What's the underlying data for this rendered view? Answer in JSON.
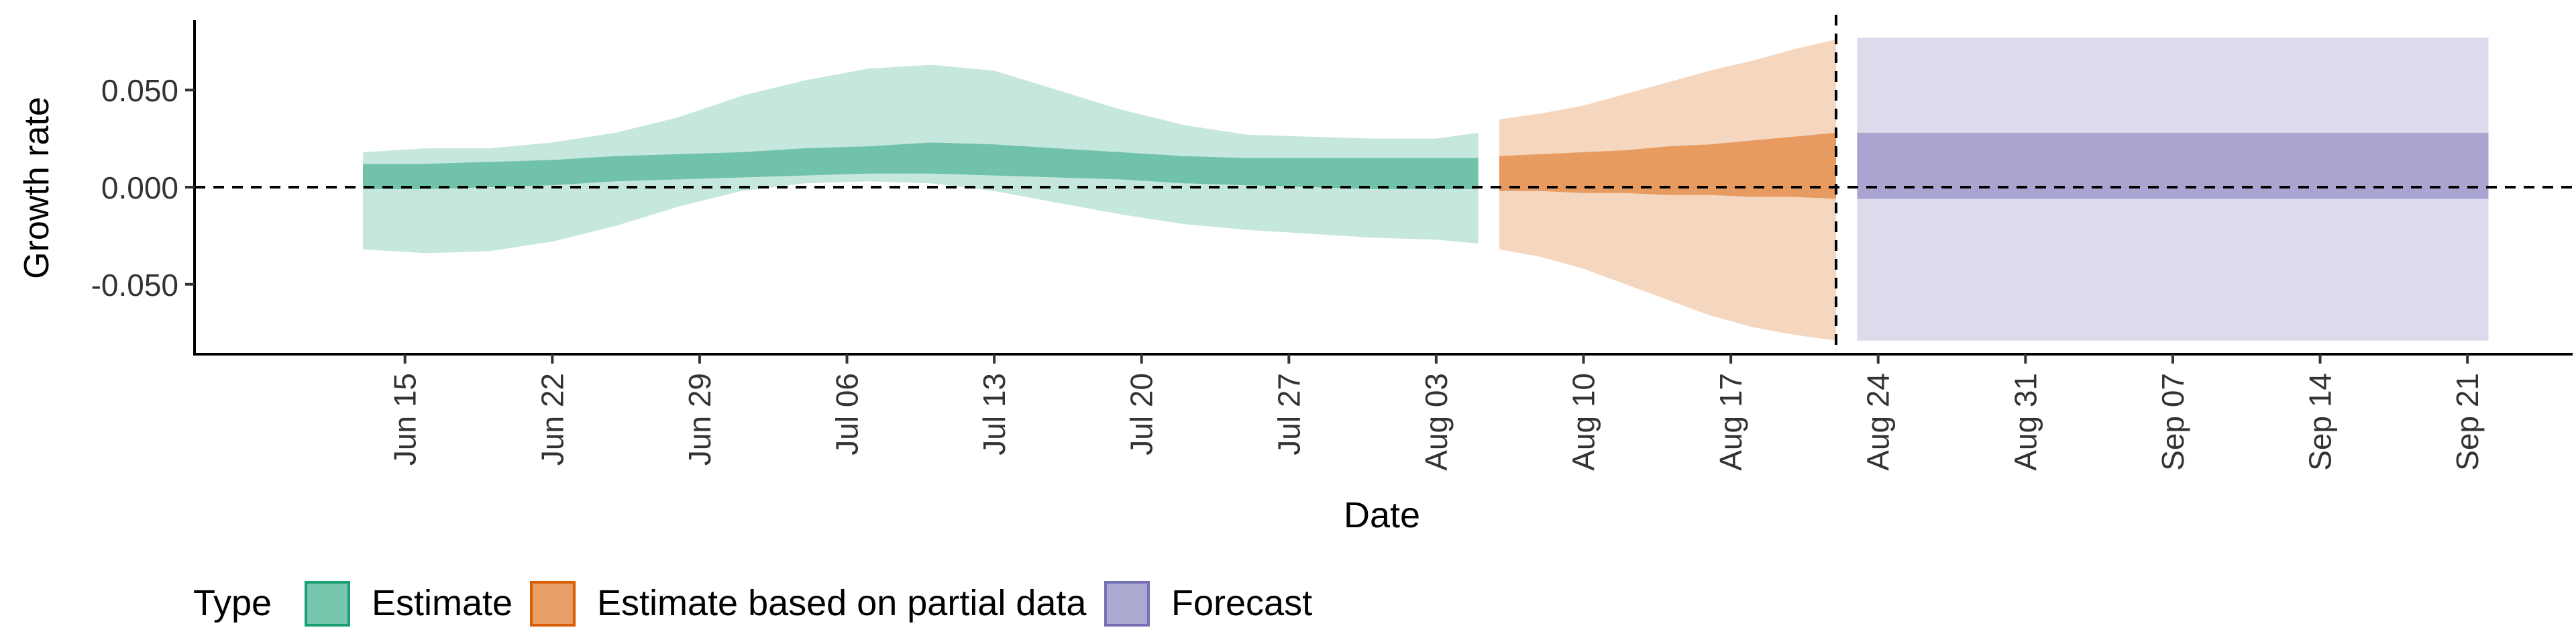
{
  "chart_data": {
    "type": "area",
    "xlabel": "Date",
    "ylabel": "Growth rate",
    "x_ticks": [
      "Jun 15",
      "Jun 22",
      "Jun 29",
      "Jul 06",
      "Jul 13",
      "Jul 20",
      "Jul 27",
      "Aug 03",
      "Aug 10",
      "Aug 17",
      "Aug 24",
      "Aug 31",
      "Sep 07",
      "Sep 14",
      "Sep 21"
    ],
    "y_ticks": [
      "0.050",
      "0.000",
      "-0.050"
    ],
    "y_tick_values": [
      0.05,
      0.0,
      -0.05
    ],
    "xlim": [
      "2020-06-05",
      "2020-09-26"
    ],
    "ylim": [
      -0.086,
      0.086
    ],
    "reference_hline": 0.0,
    "reference_vline": "2020-08-22",
    "legend": {
      "title": "Type",
      "position": "bottom-left",
      "entries": [
        "Estimate",
        "Estimate based on partial data",
        "Forecast"
      ]
    },
    "colors": {
      "Estimate": "#1b9e77",
      "Estimate based on partial data": "#d95f02",
      "Forecast": "#7570b3"
    },
    "series": [
      {
        "name": "Estimate",
        "x": [
          "2020-06-13",
          "2020-06-16",
          "2020-06-19",
          "2020-06-22",
          "2020-06-25",
          "2020-06-28",
          "2020-07-01",
          "2020-07-04",
          "2020-07-07",
          "2020-07-10",
          "2020-07-13",
          "2020-07-16",
          "2020-07-19",
          "2020-07-22",
          "2020-07-25",
          "2020-07-28",
          "2020-07-31",
          "2020-08-03",
          "2020-08-05"
        ],
        "outer_upper": [
          0.018,
          0.02,
          0.02,
          0.023,
          0.028,
          0.036,
          0.047,
          0.055,
          0.061,
          0.063,
          0.06,
          0.05,
          0.04,
          0.032,
          0.027,
          0.026,
          0.025,
          0.025,
          0.028
        ],
        "outer_lower": [
          -0.032,
          -0.034,
          -0.033,
          -0.028,
          -0.02,
          -0.01,
          -0.002,
          0.002,
          0.003,
          0.002,
          -0.002,
          -0.008,
          -0.014,
          -0.019,
          -0.022,
          -0.024,
          -0.026,
          -0.027,
          -0.029
        ],
        "inner_upper": [
          0.012,
          0.012,
          0.013,
          0.014,
          0.016,
          0.017,
          0.018,
          0.02,
          0.021,
          0.023,
          0.022,
          0.02,
          0.018,
          0.016,
          0.015,
          0.015,
          0.015,
          0.015,
          0.015
        ],
        "inner_lower": [
          -0.001,
          -0.001,
          0.0,
          0.001,
          0.003,
          0.004,
          0.005,
          0.006,
          0.007,
          0.007,
          0.006,
          0.005,
          0.004,
          0.002,
          0.001,
          0.0,
          -0.001,
          -0.001,
          -0.001
        ]
      },
      {
        "name": "Estimate based on partial data",
        "x": [
          "2020-08-06",
          "2020-08-08",
          "2020-08-10",
          "2020-08-12",
          "2020-08-14",
          "2020-08-16",
          "2020-08-18",
          "2020-08-20",
          "2020-08-22"
        ],
        "outer_upper": [
          0.035,
          0.038,
          0.042,
          0.048,
          0.054,
          0.06,
          0.065,
          0.071,
          0.076
        ],
        "outer_lower": [
          -0.032,
          -0.036,
          -0.042,
          -0.05,
          -0.058,
          -0.066,
          -0.072,
          -0.076,
          -0.079
        ],
        "inner_upper": [
          0.016,
          0.017,
          0.018,
          0.019,
          0.021,
          0.022,
          0.024,
          0.026,
          0.028
        ],
        "inner_lower": [
          -0.002,
          -0.002,
          -0.003,
          -0.003,
          -0.004,
          -0.004,
          -0.005,
          -0.005,
          -0.006
        ]
      },
      {
        "name": "Forecast",
        "x": [
          "2020-08-23",
          "2020-09-22"
        ],
        "outer_upper": [
          0.077,
          0.077
        ],
        "outer_lower": [
          -0.079,
          -0.079
        ],
        "inner_upper": [
          0.028,
          0.028
        ],
        "inner_lower": [
          -0.006,
          -0.006
        ]
      }
    ]
  }
}
